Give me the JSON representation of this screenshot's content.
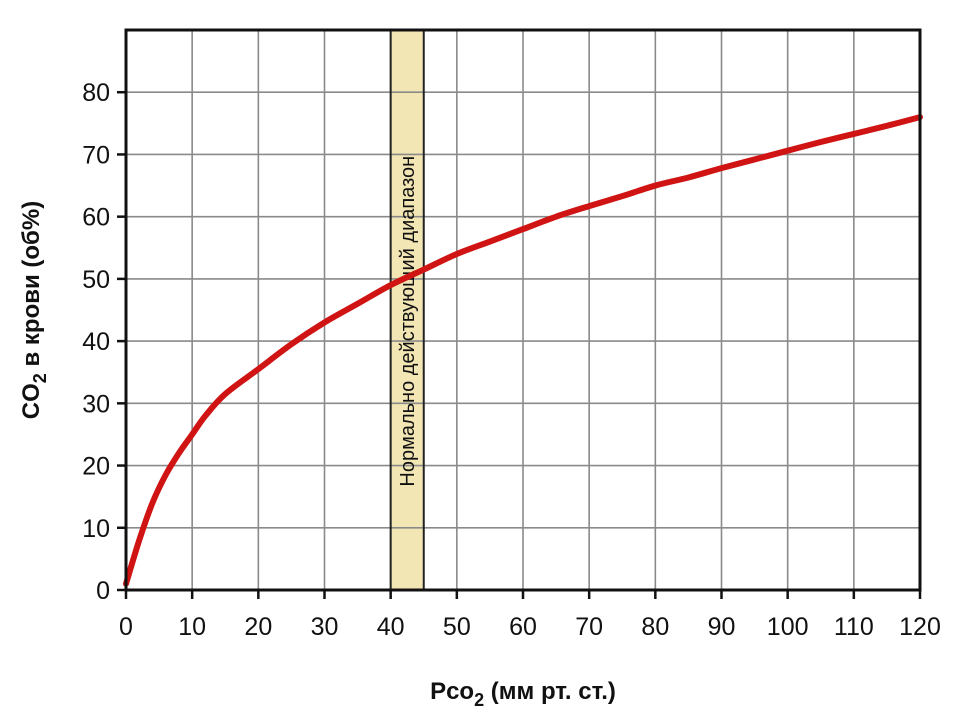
{
  "chart_data": {
    "type": "line",
    "xlabel": {
      "main": "Pco",
      "sub": "2",
      "rest": " (мм рт. ст.)"
    },
    "ylabel": {
      "main": "CO",
      "sub": "2",
      "rest": " в крови (об%)"
    },
    "xlim": [
      0,
      120
    ],
    "ylim": [
      0,
      90
    ],
    "x_ticks": [
      0,
      10,
      20,
      30,
      40,
      50,
      60,
      70,
      80,
      90,
      100,
      110,
      120
    ],
    "y_ticks": [
      0,
      10,
      20,
      30,
      40,
      50,
      60,
      70,
      80
    ],
    "grid": true,
    "band": {
      "x_range": [
        40,
        45
      ],
      "label": "Нормально действующий диапазон",
      "color": "#f2e6b4"
    },
    "series": [
      {
        "color": "#d01414",
        "x": [
          0,
          2,
          4,
          6,
          8,
          10,
          12,
          15,
          20,
          25,
          30,
          35,
          40,
          45,
          50,
          55,
          60,
          65,
          70,
          75,
          80,
          85,
          90,
          95,
          100,
          105,
          110,
          115,
          120
        ],
        "y": [
          1,
          8,
          14,
          18.5,
          22,
          25,
          28,
          31.5,
          35.5,
          39.5,
          43,
          46,
          49,
          51.5,
          54,
          56,
          58,
          60,
          61.7,
          63.3,
          65,
          66.3,
          67.8,
          69.2,
          70.6,
          72,
          73.3,
          74.6,
          76
        ]
      }
    ]
  }
}
